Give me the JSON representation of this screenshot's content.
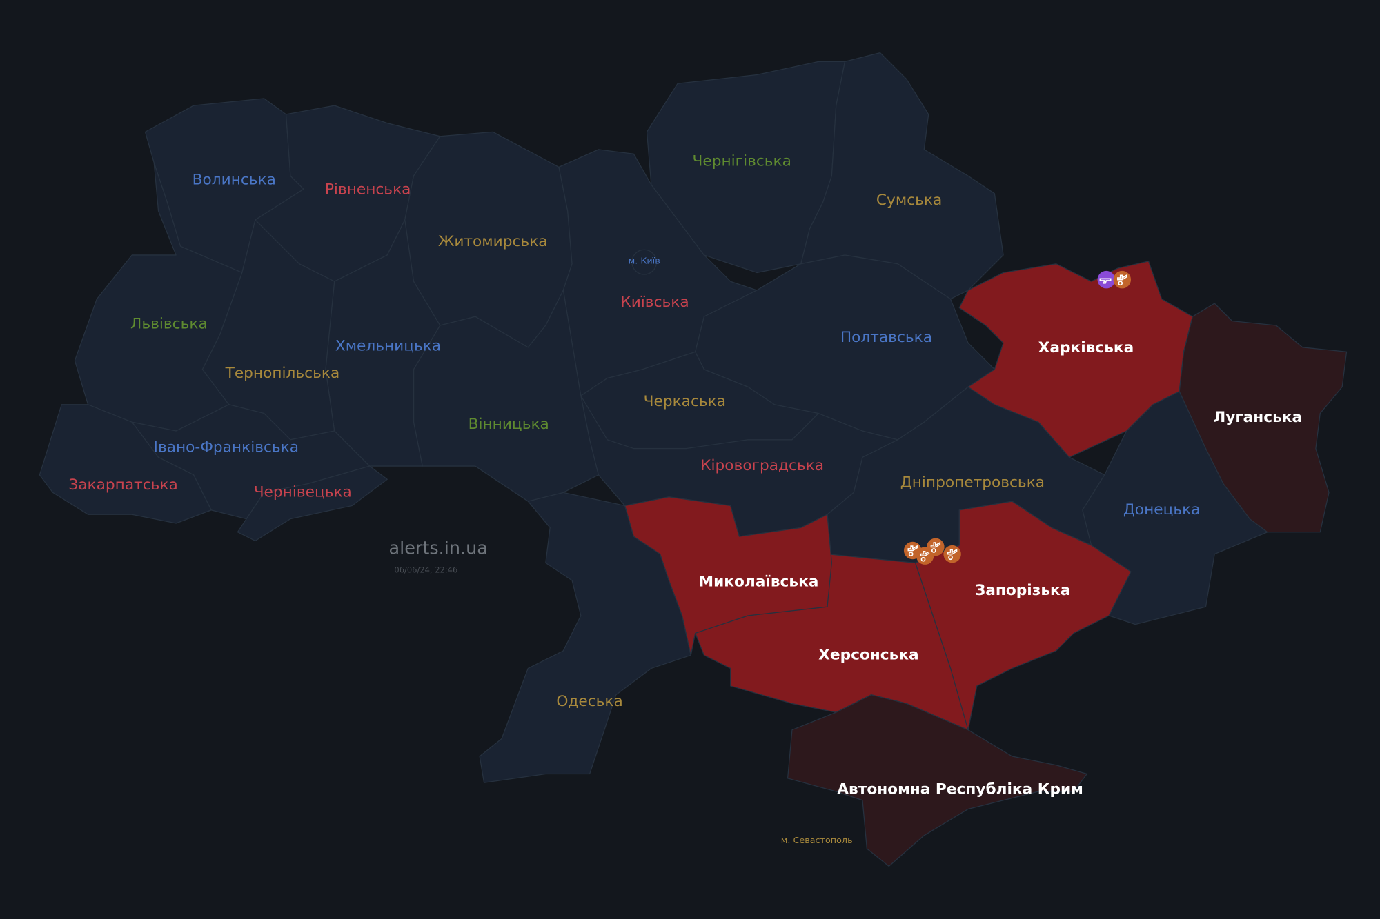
{
  "watermark": {
    "site": "alerts.in.ua",
    "timestamp": "06/06/24, 22:46"
  },
  "colors": {
    "background": "#13171d",
    "region_default": "#1a2332",
    "region_alert": "#821a1e",
    "region_occupied": "#2d181c",
    "label_blue": "#4a76c6",
    "label_red": "#c8434e",
    "label_green": "#5f8b30",
    "label_gold": "#a8893c",
    "label_white": "#ffffff",
    "icon_artillery": "#c2642a",
    "icon_ground": "#8a4bd8"
  },
  "regions": [
    {
      "id": "volyn",
      "label": "Волинська",
      "status": "none",
      "label_color": "blue"
    },
    {
      "id": "rivne",
      "label": "Рівненська",
      "status": "none",
      "label_color": "red"
    },
    {
      "id": "zhytomyr",
      "label": "Житомирська",
      "status": "none",
      "label_color": "gold"
    },
    {
      "id": "kyivska",
      "label": "Київська",
      "status": "none",
      "label_color": "red"
    },
    {
      "id": "chernihiv",
      "label": "Чернігівська",
      "status": "none",
      "label_color": "green"
    },
    {
      "id": "sumy",
      "label": "Сумська",
      "status": "none",
      "label_color": "gold"
    },
    {
      "id": "poltava",
      "label": "Полтавська",
      "status": "none",
      "label_color": "blue"
    },
    {
      "id": "kharkiv",
      "label": "Харківська",
      "status": "alert",
      "label_color": "white"
    },
    {
      "id": "luhansk",
      "label": "Луганська",
      "status": "occupied",
      "label_color": "white"
    },
    {
      "id": "donetsk",
      "label": "Донецька",
      "status": "none",
      "label_color": "blue"
    },
    {
      "id": "zaporizhzhia",
      "label": "Запорізька",
      "status": "alert",
      "label_color": "white"
    },
    {
      "id": "kherson",
      "label": "Херсонська",
      "status": "alert",
      "label_color": "white"
    },
    {
      "id": "mykolaiv",
      "label": "Миколаївська",
      "status": "alert",
      "label_color": "white"
    },
    {
      "id": "odesa",
      "label": "Одеська",
      "status": "none",
      "label_color": "gold"
    },
    {
      "id": "crimea",
      "label": "Автономна Республіка Крим",
      "status": "occupied",
      "label_color": "white"
    },
    {
      "id": "dnipro",
      "label": "Дніпропетровська",
      "status": "none",
      "label_color": "gold"
    },
    {
      "id": "kirovohrad",
      "label": "Кіровоградська",
      "status": "none",
      "label_color": "red"
    },
    {
      "id": "cherkasy",
      "label": "Черкаська",
      "status": "none",
      "label_color": "gold"
    },
    {
      "id": "vinnytsia",
      "label": "Вінницька",
      "status": "none",
      "label_color": "green"
    },
    {
      "id": "khmelnytskyi",
      "label": "Хмельницька",
      "status": "none",
      "label_color": "blue"
    },
    {
      "id": "ternopil",
      "label": "Тернопільська",
      "status": "none",
      "label_color": "gold"
    },
    {
      "id": "lviv",
      "label": "Львівська",
      "status": "none",
      "label_color": "green"
    },
    {
      "id": "ivano_frankivsk",
      "label": "Івано-Франківська",
      "status": "none",
      "label_color": "blue"
    },
    {
      "id": "zakarpattia",
      "label": "Закарпатська",
      "status": "none",
      "label_color": "red"
    },
    {
      "id": "chernivtsi",
      "label": "Чернівецька",
      "status": "none",
      "label_color": "red"
    },
    {
      "id": "kyiv_city",
      "label": "м. Київ",
      "status": "none",
      "label_color": "blue"
    },
    {
      "id": "sevastopol",
      "label": "м. Севастополь",
      "status": "occupied",
      "label_color": "gold"
    }
  ],
  "threat_markers": [
    {
      "region": "kharkiv",
      "type": "ground-attack",
      "icon": "assault-rifle-icon"
    },
    {
      "region": "kharkiv",
      "type": "artillery",
      "icon": "artillery-icon"
    },
    {
      "region": "zaporizhzhia",
      "type": "artillery",
      "icon": "artillery-icon"
    },
    {
      "region": "zaporizhzhia",
      "type": "artillery",
      "icon": "artillery-icon"
    },
    {
      "region": "zaporizhzhia",
      "type": "artillery",
      "icon": "artillery-icon"
    },
    {
      "region": "zaporizhzhia",
      "type": "artillery",
      "icon": "artillery-icon"
    }
  ]
}
